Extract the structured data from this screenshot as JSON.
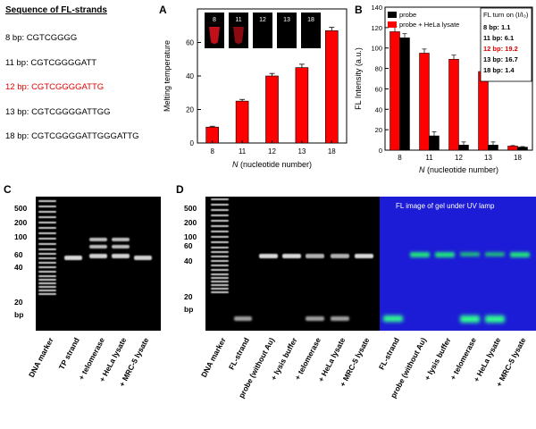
{
  "sequences": {
    "title": "Sequence of FL-strands",
    "items": [
      {
        "label": "8 bp:",
        "seq": "CGTCGGGG",
        "highlight": false
      },
      {
        "label": "11 bp:",
        "seq": "CGTCGGGGATT",
        "highlight": false
      },
      {
        "label": "12 bp:",
        "seq": "CGTCGGGGATTG",
        "highlight": true
      },
      {
        "label": "13 bp:",
        "seq": "CGTCGGGGATTGG",
        "highlight": false
      },
      {
        "label": "18 bp:",
        "seq": "CGTCGGGGATTGGGATTG",
        "highlight": false
      }
    ]
  },
  "panel_letters": {
    "a": "A",
    "b": "B",
    "c": "C",
    "d": "D"
  },
  "chart_data": [
    {
      "type": "bar",
      "categories": [
        "8",
        "11",
        "12",
        "13",
        "18"
      ],
      "series": [
        {
          "values": [
            9.5,
            25,
            40,
            45,
            67
          ],
          "errors": [
            0.5,
            1,
            1.5,
            2,
            2
          ]
        }
      ],
      "xlabel_italic": "N",
      "xlabel": "(nucleotide number)",
      "ylabel": "Melting temperature",
      "ylim": [
        0,
        80
      ],
      "yticks": [
        0,
        20,
        40,
        60
      ],
      "color": "#ff0000",
      "inset_labels": [
        "8",
        "11",
        "12",
        "13",
        "18"
      ]
    },
    {
      "type": "bar",
      "categories": [
        "8",
        "11",
        "12",
        "13",
        "18"
      ],
      "series": [
        {
          "name": "probe",
          "values": [
            110,
            14,
            5,
            5,
            3
          ],
          "errors": [
            4,
            4,
            3,
            3,
            0.5
          ],
          "color": "#000000"
        },
        {
          "name": "probe + HeLa lysate",
          "values": [
            116,
            95,
            89,
            77,
            4
          ],
          "errors": [
            5,
            4,
            4,
            3,
            0.5
          ],
          "color": "#ff0000"
        }
      ],
      "xlabel_italic": "N",
      "xlabel": "(nucleotide number)",
      "ylabel": "FL Intensity (a.u.)",
      "ylim": [
        0,
        140
      ],
      "yticks": [
        0,
        20,
        40,
        60,
        80,
        100,
        120,
        140
      ],
      "turn_on": {
        "title": "FL turn on (I/I₀)",
        "items": [
          {
            "text": "8 bp: 1.1",
            "highlight": false
          },
          {
            "text": "11 bp: 6.1",
            "highlight": false
          },
          {
            "text": "12 bp: 19.2",
            "highlight": true
          },
          {
            "text": "13 bp: 16.7",
            "highlight": false
          },
          {
            "text": "18 bp: 1.4",
            "highlight": false
          }
        ]
      }
    }
  ],
  "gel_c": {
    "markers": [
      "500",
      "200",
      "100",
      "60",
      "40",
      "20",
      "bp"
    ],
    "lanes": [
      "DNA marker",
      "TP strand",
      "+ telomerase",
      "+ HeLa lysate",
      "+ MRC-5 lysate"
    ]
  },
  "gel_d": {
    "markers": [
      "500",
      "200",
      "100",
      "60",
      "40",
      "20",
      "bp"
    ],
    "uv_title": "FL image of gel under UV lamp",
    "lanes": [
      "DNA marker",
      "FL-strand",
      "probe (without Au)",
      "+ lysis buffer",
      "+ telomerase",
      "+ HeLa lysate",
      "+ MRC-5 lysate",
      "FL-strand",
      "probe (without Au)",
      "+ lysis buffer",
      "+ telomerase",
      "+ HeLa lysate",
      "+ MRC-5 lysate"
    ]
  }
}
